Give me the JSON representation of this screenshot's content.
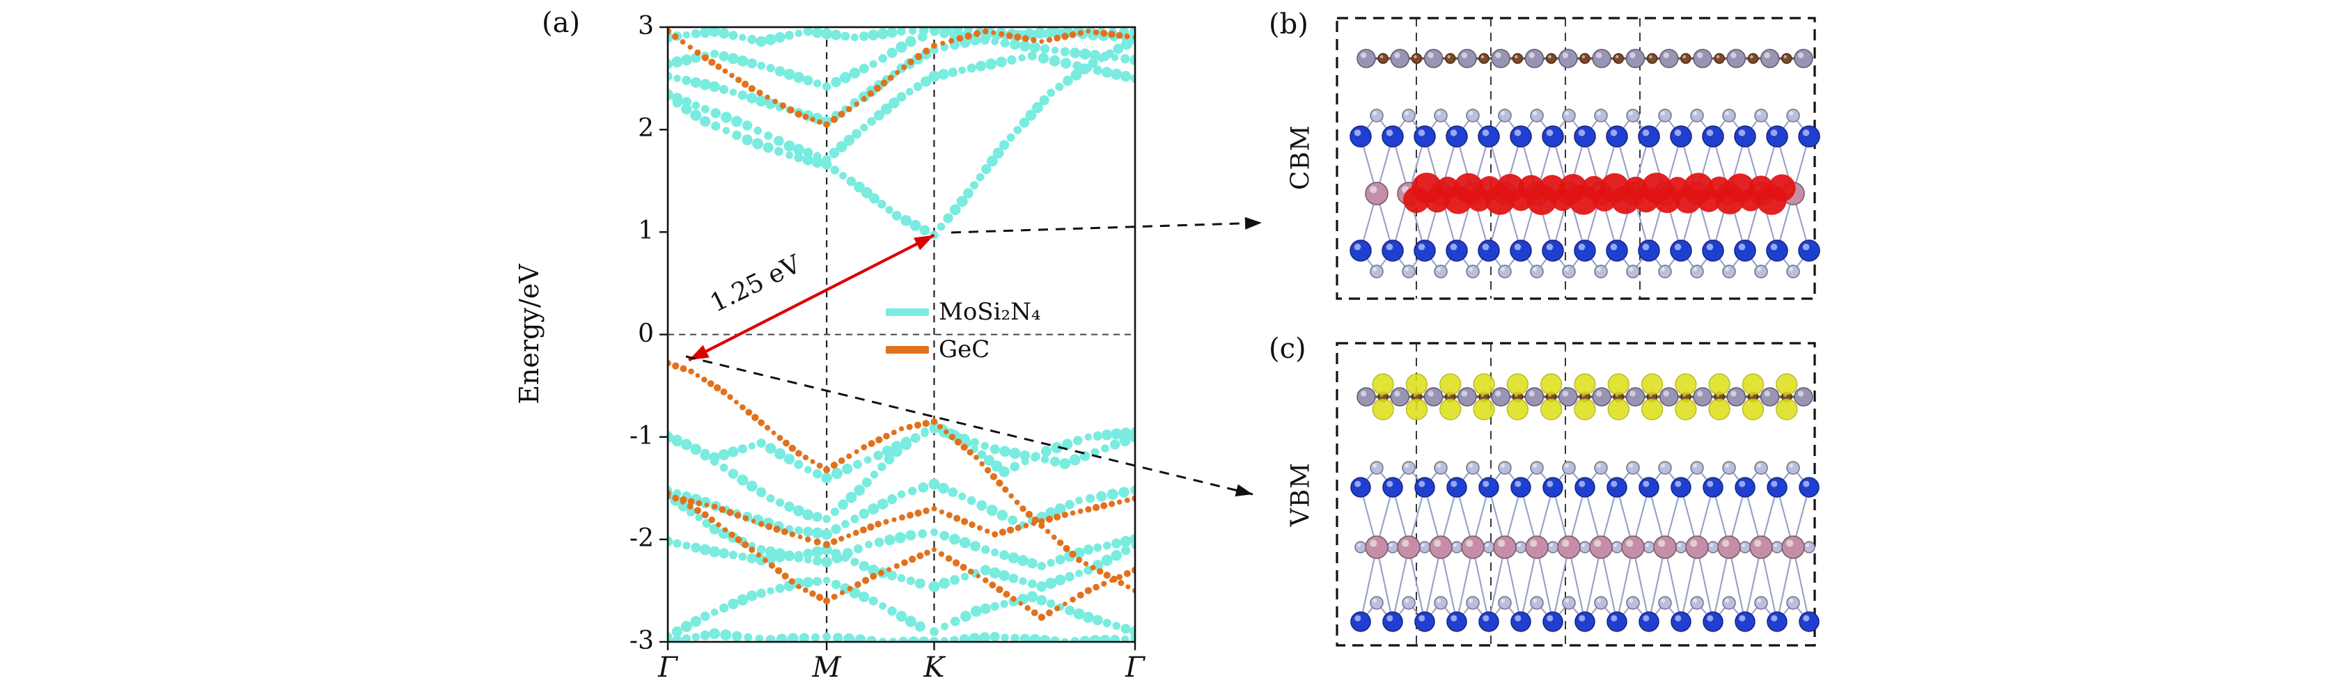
{
  "figure": {
    "panel_a_label": "(a)",
    "panel_b_label": "(b)",
    "panel_c_label": "(c)",
    "cbm_label": "CBM",
    "vbm_label": "VBM"
  },
  "chart_data": {
    "type": "scatter",
    "title": "",
    "xlabel": "",
    "ylabel": "Energy/eV",
    "ylim": [
      -3,
      3
    ],
    "y_ticks": [
      3,
      2,
      1,
      0,
      -1,
      -2,
      -3
    ],
    "x_tick_labels": [
      "Γ",
      "M",
      "K",
      "Γ"
    ],
    "x_tick_positions": [
      0,
      0.34,
      0.57,
      1.0
    ],
    "vlines": [
      0.34,
      0.57
    ],
    "hlines": [
      0
    ],
    "grid": false,
    "legend_position": "inside center-right",
    "legend": [
      {
        "label": "MoSi₂N₄",
        "color": "#79ecdf"
      },
      {
        "label": "GeC",
        "color": "#e2711d"
      }
    ],
    "gap_annotation": {
      "label": "1.25 eV",
      "from_k": 0.045,
      "from_e": -0.25,
      "to_k": 0.57,
      "to_e": 0.97,
      "color": "#dd0000"
    },
    "callout_arrows": [
      {
        "from": "CBM at K",
        "to": "panel (b)"
      },
      {
        "from": "VBM near Γ",
        "to": "panel (c)"
      }
    ],
    "series": [
      {
        "name": "MoSi2N4",
        "color": "#79ecdf",
        "dot_radius": 7.2,
        "dot_gap": 15,
        "bands": [
          [
            [
              0,
              2.32
            ],
            [
              0.08,
              2.08
            ],
            [
              0.17,
              1.9
            ],
            [
              0.26,
              1.75
            ],
            [
              0.34,
              1.66
            ],
            [
              0.41,
              1.44
            ],
            [
              0.49,
              1.16
            ],
            [
              0.57,
              0.97
            ],
            [
              0.63,
              1.3
            ],
            [
              0.72,
              1.85
            ],
            [
              0.82,
              2.36
            ],
            [
              0.91,
              2.65
            ],
            [
              1,
              2.88
            ]
          ],
          [
            [
              0,
              2.34
            ],
            [
              0.08,
              2.2
            ],
            [
              0.17,
              2.04
            ],
            [
              0.26,
              1.84
            ],
            [
              0.34,
              1.71
            ],
            [
              0.42,
              2.02
            ],
            [
              0.5,
              2.32
            ],
            [
              0.57,
              2.52
            ],
            [
              0.67,
              2.62
            ],
            [
              0.78,
              2.72
            ],
            [
              0.9,
              2.6
            ],
            [
              1,
              2.5
            ]
          ],
          [
            [
              0,
              2.52
            ],
            [
              0.1,
              2.42
            ],
            [
              0.2,
              2.28
            ],
            [
              0.34,
              2.08
            ],
            [
              0.42,
              2.32
            ],
            [
              0.5,
              2.6
            ],
            [
              0.57,
              2.78
            ],
            [
              0.68,
              2.9
            ],
            [
              0.82,
              2.95
            ],
            [
              1,
              2.9
            ]
          ],
          [
            [
              0,
              2.64
            ],
            [
              0.1,
              2.74
            ],
            [
              0.22,
              2.6
            ],
            [
              0.34,
              2.42
            ],
            [
              0.44,
              2.64
            ],
            [
              0.52,
              2.86
            ],
            [
              0.57,
              2.95
            ],
            [
              0.7,
              2.86
            ],
            [
              0.85,
              2.76
            ],
            [
              1,
              2.68
            ]
          ],
          [
            [
              0,
              2.9
            ],
            [
              0.1,
              2.96
            ],
            [
              0.2,
              2.86
            ],
            [
              0.3,
              2.96
            ],
            [
              0.4,
              2.9
            ],
            [
              0.5,
              2.96
            ],
            [
              0.62,
              2.98
            ],
            [
              0.76,
              2.92
            ],
            [
              0.88,
              2.96
            ],
            [
              1,
              2.95
            ]
          ],
          [
            [
              0,
              -0.98
            ],
            [
              0.06,
              -1.12
            ],
            [
              0.14,
              -1.36
            ],
            [
              0.22,
              -1.6
            ],
            [
              0.3,
              -1.76
            ],
            [
              0.34,
              -1.8
            ],
            [
              0.41,
              -1.52
            ],
            [
              0.49,
              -1.14
            ],
            [
              0.57,
              -0.88
            ],
            [
              0.64,
              -1.06
            ],
            [
              0.72,
              -1.34
            ],
            [
              0.81,
              -1.14
            ],
            [
              0.9,
              -1.0
            ],
            [
              1,
              -0.95
            ]
          ],
          [
            [
              0,
              -1.0
            ],
            [
              0.1,
              -1.2
            ],
            [
              0.2,
              -1.06
            ],
            [
              0.3,
              -1.32
            ],
            [
              0.34,
              -1.4
            ],
            [
              0.45,
              -1.18
            ],
            [
              0.57,
              -0.92
            ],
            [
              0.7,
              -1.12
            ],
            [
              0.85,
              -1.26
            ],
            [
              1,
              -1.0
            ]
          ],
          [
            [
              0,
              -1.52
            ],
            [
              0.08,
              -1.64
            ],
            [
              0.17,
              -1.78
            ],
            [
              0.26,
              -1.9
            ],
            [
              0.34,
              -1.95
            ],
            [
              0.42,
              -1.75
            ],
            [
              0.5,
              -1.56
            ],
            [
              0.57,
              -1.46
            ],
            [
              0.65,
              -1.62
            ],
            [
              0.76,
              -1.86
            ],
            [
              0.88,
              -1.62
            ],
            [
              1,
              -1.52
            ]
          ],
          [
            [
              0,
              -1.56
            ],
            [
              0.1,
              -1.9
            ],
            [
              0.2,
              -2.1
            ],
            [
              0.3,
              -2.2
            ],
            [
              0.34,
              -2.22
            ],
            [
              0.43,
              -2.05
            ],
            [
              0.52,
              -1.96
            ],
            [
              0.57,
              -1.93
            ],
            [
              0.68,
              -2.1
            ],
            [
              0.8,
              -2.26
            ],
            [
              0.9,
              -2.1
            ],
            [
              1,
              -2.0
            ]
          ],
          [
            [
              0,
              -2.02
            ],
            [
              0.1,
              -2.12
            ],
            [
              0.2,
              -2.2
            ],
            [
              0.3,
              -2.14
            ],
            [
              0.34,
              -2.1
            ],
            [
              0.44,
              -2.3
            ],
            [
              0.54,
              -2.43
            ],
            [
              0.57,
              -2.46
            ],
            [
              0.68,
              -2.3
            ],
            [
              0.8,
              -2.46
            ],
            [
              0.9,
              -2.3
            ],
            [
              1,
              -2.06
            ]
          ],
          [
            [
              0,
              -2.95
            ],
            [
              0.08,
              -2.75
            ],
            [
              0.18,
              -2.55
            ],
            [
              0.28,
              -2.43
            ],
            [
              0.34,
              -2.4
            ],
            [
              0.44,
              -2.6
            ],
            [
              0.54,
              -2.85
            ],
            [
              0.57,
              -2.9
            ],
            [
              0.66,
              -2.7
            ],
            [
              0.78,
              -2.56
            ],
            [
              0.9,
              -2.76
            ],
            [
              1,
              -2.9
            ]
          ],
          [
            [
              0,
              -3.0
            ],
            [
              0.1,
              -2.92
            ],
            [
              0.22,
              -2.98
            ],
            [
              0.34,
              -2.95
            ],
            [
              0.46,
              -3.0
            ],
            [
              0.57,
              -3.0
            ],
            [
              0.7,
              -2.95
            ],
            [
              0.85,
              -3.0
            ],
            [
              1,
              -2.97
            ]
          ]
        ]
      },
      {
        "name": "GeC",
        "color": "#e2711d",
        "dot_radius": 4.6,
        "dot_gap": 12,
        "bands": [
          [
            [
              0,
              -0.28
            ],
            [
              0.05,
              -0.36
            ],
            [
              0.12,
              -0.56
            ],
            [
              0.2,
              -0.86
            ],
            [
              0.28,
              -1.16
            ],
            [
              0.34,
              -1.32
            ],
            [
              0.42,
              -1.1
            ],
            [
              0.5,
              -0.92
            ],
            [
              0.57,
              -0.85
            ],
            [
              0.66,
              -1.2
            ],
            [
              0.76,
              -1.7
            ],
            [
              0.88,
              -2.2
            ],
            [
              1,
              -2.5
            ]
          ],
          [
            [
              0,
              -1.55
            ],
            [
              0.08,
              -1.76
            ],
            [
              0.18,
              -2.1
            ],
            [
              0.28,
              -2.46
            ],
            [
              0.34,
              -2.6
            ],
            [
              0.44,
              -2.36
            ],
            [
              0.54,
              -2.16
            ],
            [
              0.57,
              -2.1
            ],
            [
              0.68,
              -2.4
            ],
            [
              0.8,
              -2.76
            ],
            [
              0.9,
              -2.5
            ],
            [
              1,
              -2.3
            ]
          ],
          [
            [
              0,
              -1.58
            ],
            [
              0.1,
              -1.68
            ],
            [
              0.2,
              -1.85
            ],
            [
              0.3,
              -2.0
            ],
            [
              0.34,
              -2.05
            ],
            [
              0.45,
              -1.85
            ],
            [
              0.57,
              -1.7
            ],
            [
              0.7,
              -1.95
            ],
            [
              0.85,
              -1.76
            ],
            [
              1,
              -1.6
            ]
          ],
          [
            [
              0,
              2.96
            ],
            [
              0.08,
              2.7
            ],
            [
              0.18,
              2.4
            ],
            [
              0.28,
              2.15
            ],
            [
              0.34,
              2.05
            ],
            [
              0.42,
              2.3
            ],
            [
              0.52,
              2.66
            ],
            [
              0.57,
              2.82
            ],
            [
              0.68,
              2.96
            ],
            [
              0.8,
              2.86
            ],
            [
              0.9,
              2.96
            ],
            [
              1,
              2.9
            ]
          ]
        ]
      }
    ]
  },
  "panels": {
    "b": {
      "label": "(b)",
      "side_label": "CBM",
      "charge": "red isosurface on Mo layer"
    },
    "c": {
      "label": "(c)",
      "side_label": "VBM",
      "charge": "yellow isosurface on GeC layer"
    },
    "atom_colors": {
      "ge": "#9a94b4",
      "c": "#7b4a2a",
      "n_blue": "#1f3fd0",
      "si_lavender": "#b9bedf",
      "mo_pink": "#c48fa6",
      "charge_red": "#e11212",
      "charge_yellow": "#dfe01c"
    }
  }
}
